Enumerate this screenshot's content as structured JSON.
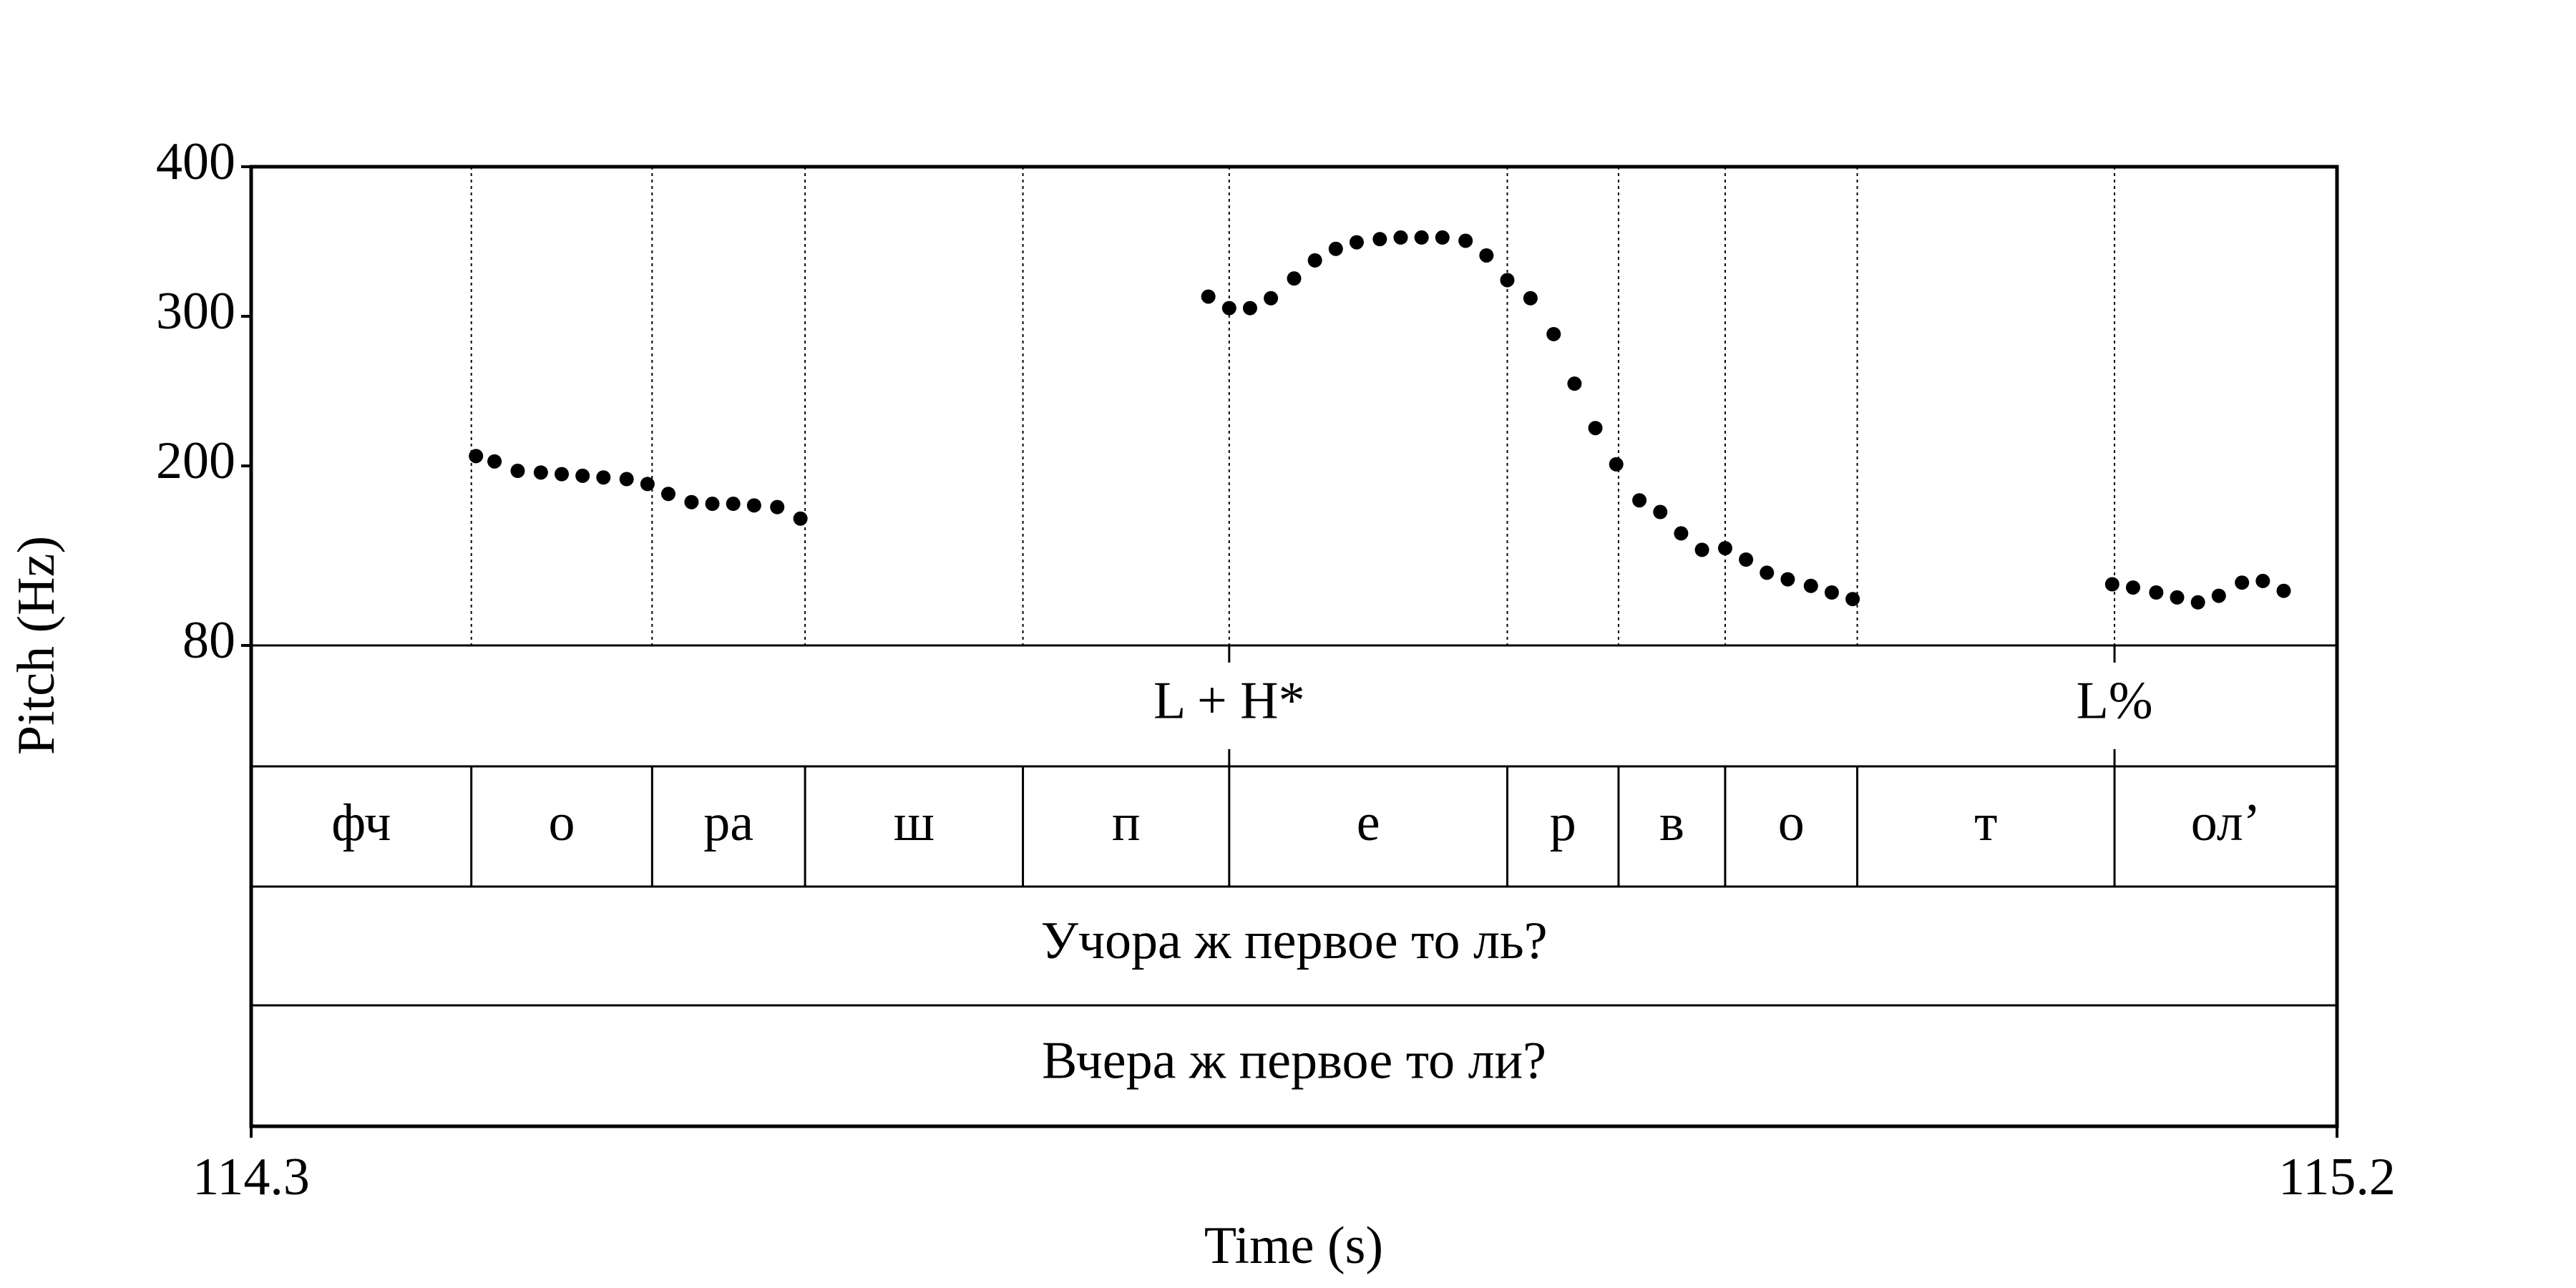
{
  "chart_data": {
    "type": "scatter",
    "y_label": "Pitch (Hz)",
    "x_label": "Time (s)",
    "xlim": [
      114.3,
      115.2
    ],
    "xticks": [
      114.3,
      115.2
    ],
    "ylim": [
      80,
      400
    ],
    "yticks": [
      80,
      200,
      300,
      400
    ],
    "series": [
      {
        "color": "#000000",
        "x": [
          114.397,
          114.405,
          114.415,
          114.425,
          114.434,
          114.443,
          114.452,
          114.462,
          114.471,
          114.48,
          114.49,
          114.499,
          114.508,
          114.517,
          114.527,
          114.537,
          114.713,
          114.722,
          114.731,
          114.74,
          114.75,
          114.759,
          114.768,
          114.777,
          114.787,
          114.796,
          114.805,
          114.814,
          114.824,
          114.833,
          114.842,
          114.852,
          114.862,
          114.871,
          114.88,
          114.889,
          114.899,
          114.908,
          114.917,
          114.926,
          114.936,
          114.945,
          114.954,
          114.963,
          114.973,
          114.982,
          114.991,
          115.103,
          115.112,
          115.122,
          115.131,
          115.14,
          115.149,
          115.159,
          115.168,
          115.177
        ],
        "values": [
          206.6,
          203,
          196.7,
          195.6,
          194.5,
          193.4,
          192.3,
          191.2,
          187.9,
          181.3,
          175.8,
          174.7,
          174.7,
          173.6,
          172.5,
          164.8,
          313.2,
          305.5,
          305.5,
          312.1,
          325.3,
          337.4,
          345.1,
          349.5,
          351.6,
          352.7,
          352.7,
          352.7,
          350.5,
          340.7,
          324.2,
          312.1,
          288.1,
          255.0,
          225.3,
          201.1,
          177.0,
          169.2,
          154.9,
          143.9,
          145.0,
          137.4,
          128.6,
          124.2,
          119.8,
          115.4,
          111.0,
          120.9,
          118.7,
          115.4,
          112.1,
          108.8,
          113.2,
          122.0,
          123.1,
          116.5
        ]
      }
    ],
    "tone_tier": {
      "times": [
        114.722,
        115.104
      ],
      "labels": [
        "L + H*",
        "L%"
      ]
    },
    "segment_tier": {
      "boundaries": [
        114.395,
        114.473,
        114.539,
        114.633,
        114.722,
        114.842,
        114.89,
        114.936,
        114.993,
        115.104
      ],
      "labels": [
        "фч",
        "о",
        "ра",
        "ш",
        "п",
        "е",
        "р",
        "в",
        "о",
        "т",
        "ол’"
      ]
    },
    "text_tiers": [
      "Учора ж первое то ль?",
      "Вчера ж первое то ли?"
    ]
  }
}
